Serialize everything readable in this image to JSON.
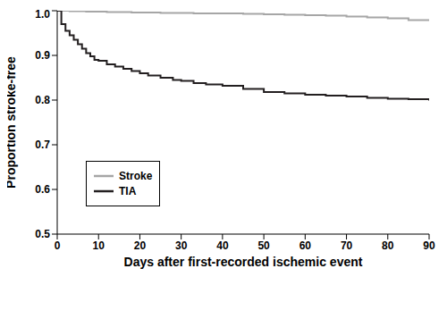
{
  "chart_data": {
    "type": "line",
    "x_label": "Days after first-recorded ischemic event",
    "y_label": "Proportion stroke-free",
    "x": [
      0,
      1,
      2,
      3,
      4,
      5,
      6,
      7,
      8,
      9,
      10,
      12,
      14,
      16,
      18,
      20,
      22,
      25,
      28,
      30,
      33,
      36,
      40,
      45,
      50,
      55,
      60,
      65,
      70,
      75,
      80,
      85,
      90
    ],
    "series": [
      {
        "name": "Stroke",
        "color": "#a6a6a6",
        "values": [
          1,
          1,
          1,
          0.999,
          0.999,
          0.999,
          0.999,
          0.998,
          0.998,
          0.998,
          0.998,
          0.997,
          0.997,
          0.997,
          0.996,
          0.996,
          0.996,
          0.995,
          0.995,
          0.995,
          0.994,
          0.994,
          0.994,
          0.993,
          0.992,
          0.991,
          0.99,
          0.989,
          0.987,
          0.985,
          0.983,
          0.979,
          0.977
        ]
      },
      {
        "name": "TIA",
        "color": "#231f20",
        "values": [
          1,
          0.97,
          0.955,
          0.945,
          0.935,
          0.925,
          0.915,
          0.905,
          0.898,
          0.89,
          0.888,
          0.88,
          0.875,
          0.87,
          0.865,
          0.86,
          0.855,
          0.85,
          0.845,
          0.843,
          0.838,
          0.835,
          0.832,
          0.825,
          0.818,
          0.815,
          0.812,
          0.81,
          0.808,
          0.805,
          0.803,
          0.802,
          0.799
        ]
      }
    ],
    "xlim": [
      0,
      90
    ],
    "xticks": [
      0,
      10,
      20,
      30,
      40,
      50,
      60,
      70,
      80,
      90
    ],
    "ylim": [
      0.5,
      1
    ],
    "yticks": [
      0.5,
      0.6,
      0.7,
      0.8,
      0.9,
      {
        "value": 1,
        "label": "1.0"
      }
    ],
    "legend": "left"
  }
}
